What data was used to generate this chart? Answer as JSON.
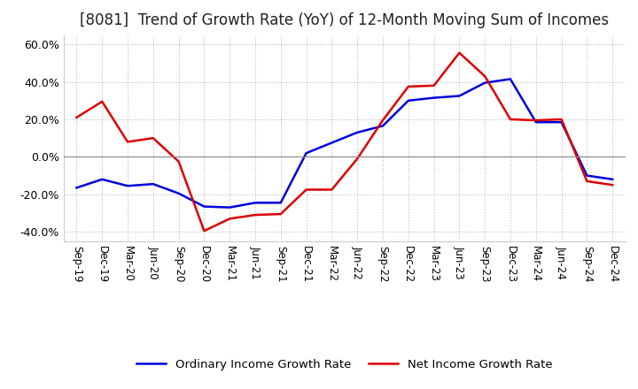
{
  "title": "[8081]  Trend of Growth Rate (YoY) of 12-Month Moving Sum of Incomes",
  "ylim": [
    -0.45,
    0.65
  ],
  "yticks": [
    -0.4,
    -0.2,
    0.0,
    0.2,
    0.4,
    0.6
  ],
  "ytick_labels": [
    "-40.0%",
    "-20.0%",
    "0.0%",
    "20.0%",
    "40.0%",
    "60.0%"
  ],
  "x_labels": [
    "Sep-19",
    "Dec-19",
    "Mar-20",
    "Jun-20",
    "Sep-20",
    "Dec-20",
    "Mar-21",
    "Jun-21",
    "Sep-21",
    "Dec-21",
    "Mar-22",
    "Jun-22",
    "Sep-22",
    "Dec-22",
    "Mar-23",
    "Jun-23",
    "Sep-23",
    "Dec-23",
    "Mar-24",
    "Jun-24",
    "Sep-24",
    "Dec-24"
  ],
  "ordinary_income": [
    -0.165,
    -0.12,
    -0.155,
    -0.145,
    -0.195,
    -0.265,
    -0.27,
    -0.245,
    -0.245,
    0.02,
    0.075,
    0.13,
    0.165,
    0.3,
    0.315,
    0.325,
    0.395,
    0.415,
    0.185,
    0.185,
    -0.1,
    -0.12
  ],
  "net_income": [
    0.21,
    0.295,
    0.08,
    0.1,
    -0.025,
    -0.395,
    -0.33,
    -0.31,
    -0.305,
    -0.175,
    -0.175,
    -0.01,
    0.195,
    0.375,
    0.38,
    0.555,
    0.43,
    0.2,
    0.195,
    0.2,
    -0.13,
    -0.15
  ],
  "ordinary_color": "#0000dd",
  "net_color": "#dd0000",
  "line_width": 1.8,
  "background_color": "#ffffff",
  "grid_color": "#bbbbbb",
  "title_fontsize": 12,
  "legend_ordinary": "Ordinary Income Growth Rate",
  "legend_net": "Net Income Growth Rate"
}
